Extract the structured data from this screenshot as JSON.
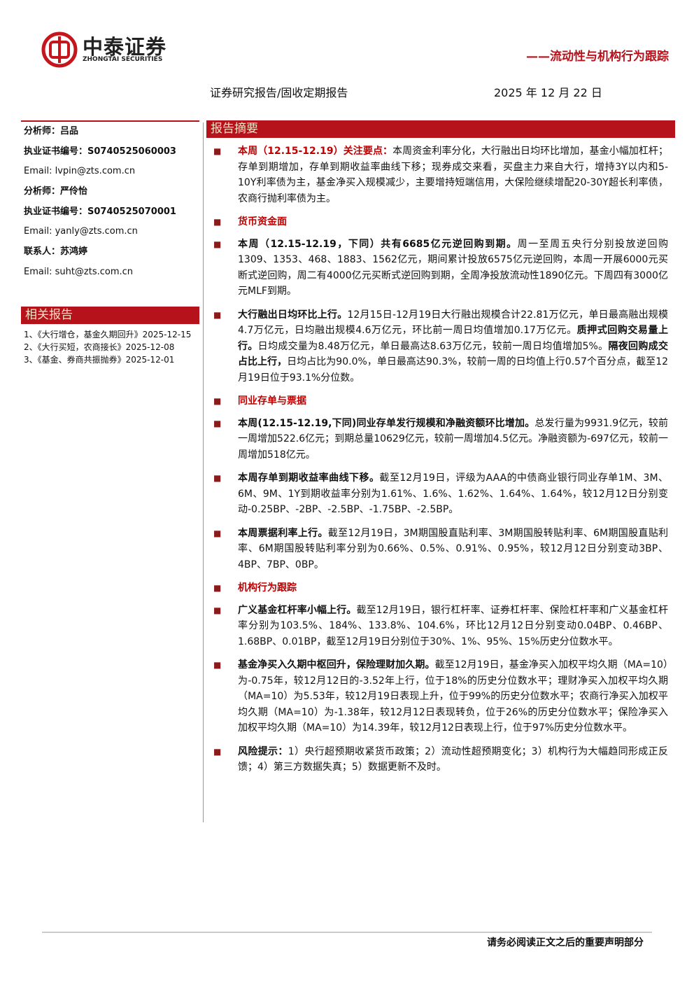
{
  "header": {
    "logo_cn": "中泰证券",
    "logo_en": "ZHONGTAI SECURITIES",
    "tagline": "——流动性与机构行为跟踪",
    "report_type": "证券研究报告/固收定期报告",
    "date": "2025 年 12 月 22 日"
  },
  "sidebar": {
    "analysts": [
      {
        "text": "分析师：吕品",
        "bold": true
      },
      {
        "text": "执业证书编号：S0740525060003",
        "bold": true
      },
      {
        "text": "Email: lvpin@zts.com.cn"
      },
      {
        "text": "分析师：严伶怡",
        "bold": true
      },
      {
        "text": "执业证书编号：S0740525070001",
        "bold": true
      },
      {
        "text": "Email: yanly@zts.com.cn"
      },
      {
        "text": "联系人：苏鸿婷",
        "bold": true
      },
      {
        "text": "Email: suht@zts.com.cn"
      }
    ],
    "related_title": "相关报告",
    "related": [
      "1、《大行增仓，基金久期回升》2025-12-15",
      "2、《大行买短，农商接长》2025-12-08",
      "3、《基金、券商共振抛券》2025-12-01"
    ]
  },
  "main": {
    "section_title": "报告摘要",
    "items": [
      {
        "runs": [
          {
            "text": "本周（12.15-12.19）关注要点：",
            "bold": true,
            "color": "#c00000"
          },
          {
            "text": "本周资金利率分化，大行融出日均环比增加，基金小幅加杠杆；存单到期增加，存单到期收益率曲线下移；现券成交来看，买盘主力来自大行，增持3Y以内和5-10Y利率债为主，基金净买入规模减少，主要增持短端信用，大保险继续增配20-30Y超长利率债，农商行抛利率债为主。"
          }
        ]
      },
      {
        "heading": "货币资金面"
      },
      {
        "runs": [
          {
            "text": "本周（12.15-12.19，下同）共有6685亿元逆回购到期。",
            "bold": true
          },
          {
            "text": "周一至周五央行分别投放逆回购1309、1353、468、1883、1562亿元，期间累计投放6575亿元逆回购，本周一开展6000元买断式逆回购，周二有4000亿元买断式逆回购到期，全周净投放流动性1890亿元。下周四有3000亿元MLF到期。"
          }
        ]
      },
      {
        "runs": [
          {
            "text": "大行融出日均环比上行。",
            "bold": true
          },
          {
            "text": "12月15日-12月19日大行融出规模合计22.81万亿元，单日最高融出规模4.7万亿元，日均融出规模4.6万亿元，环比前一周日均值增加0.17万亿元。"
          },
          {
            "text": "质押式回购交易量上行。",
            "bold": true
          },
          {
            "text": "日均成交量为8.48万亿元，单日最高达8.63万亿元，较前一周日均值增加5%。"
          },
          {
            "text": "隔夜回购成交占比上行，",
            "bold": true
          },
          {
            "text": "日均占比为90.0%，单日最高达90.3%，较前一周的日均值上行0.57个百分点，截至12月19日位于93.1%分位数。"
          }
        ]
      },
      {
        "heading": "同业存单与票据"
      },
      {
        "runs": [
          {
            "text": "本周(12.15-12.19,下同)同业存单发行规模和净融资额环比增加。",
            "bold": true
          },
          {
            "text": "总发行量为9931.9亿元，较前一周增加522.6亿元；到期总量10629亿元，较前一周增加4.5亿元。净融资额为-697亿元，较前一周增加518亿元。"
          }
        ]
      },
      {
        "runs": [
          {
            "text": "本周存单到期收益率曲线下移。",
            "bold": true
          },
          {
            "text": "截至12月19日，评级为AAA的中债商业银行同业存单1M、3M、6M、9M、1Y到期收益率分别为1.61%、1.6%、1.62%、1.64%、1.64%，较12月12日分别变动-0.25BP、-2BP、-2.5BP、-1.75BP、-2.5BP。"
          }
        ]
      },
      {
        "runs": [
          {
            "text": "本周票据利率上行。",
            "bold": true
          },
          {
            "text": "截至12月19日，3M期国股直贴利率、3M期国股转贴利率、6M期国股直贴利率、6M期国股转贴利率分别为0.66%、0.5%、0.91%、0.95%，较12月12日分别变动3BP、4BP、7BP、0BP。"
          }
        ]
      },
      {
        "heading": "机构行为跟踪"
      },
      {
        "runs": [
          {
            "text": "广义基金杠杆率小幅上行。",
            "bold": true
          },
          {
            "text": "截至12月19日，银行杠杆率、证券杠杆率、保险杠杆率和广义基金杠杆率分别为103.5%、184%、133.8%、104.6%，环比12月12日分别变动0.04BP、0.46BP、1.68BP、0.01BP，截至12月19日分别位于30%、1%、95%、15%历史分位数水平。"
          }
        ]
      },
      {
        "runs": [
          {
            "text": "基金净买入久期中枢回升，保险理财加久期。",
            "bold": true
          },
          {
            "text": "截至12月19日，基金净买入加权平均久期（MA=10）为-0.75年，较12月12日的-3.52年上行，位于18%的历史分位数水平；理财净买入加权平均久期（MA=10）为5.53年，较12月19日表现上升，位于99%的历史分位数水平；农商行净买入加权平均久期（MA=10）为-1.38年，较12月12日表现转负，位于26%的历史分位数水平；保险净买入加权平均久期（MA=10）为14.39年，较12月12日表现上行，位于97%历史分位数水平。"
          }
        ]
      },
      {
        "runs": [
          {
            "text": "风险提示：",
            "bold": true
          },
          {
            "text": "1）央行超预期收紧货币政策；2）流动性超预期变化；3）机构行为大幅趋同形成正反馈；4）第三方数据失真；5）数据更新不及时。"
          }
        ]
      }
    ]
  },
  "footer": {
    "disclaimer": "请务必阅读正文之后的重要声明部分"
  }
}
